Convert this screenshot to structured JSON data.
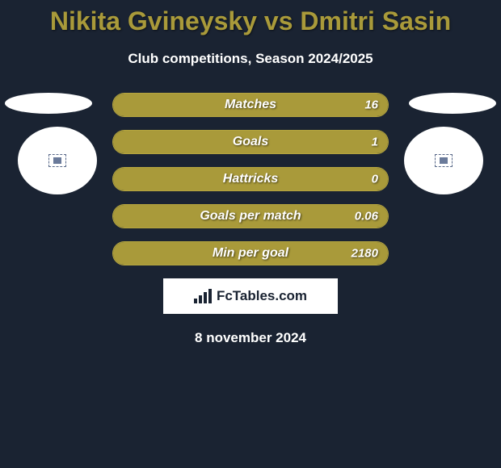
{
  "title": "Nikita Gvineysky vs Dmitri Sasin",
  "subtitle": "Club competitions, Season 2024/2025",
  "date": "8 november 2024",
  "brand": "FcTables.com",
  "colors": {
    "background": "#1a2332",
    "accent": "#a99a3a",
    "bar_border": "#b5a53f",
    "text": "#ffffff"
  },
  "stats": [
    {
      "label": "Matches",
      "value": "16",
      "fill_pct": 100
    },
    {
      "label": "Goals",
      "value": "1",
      "fill_pct": 100
    },
    {
      "label": "Hattricks",
      "value": "0",
      "fill_pct": 100
    },
    {
      "label": "Goals per match",
      "value": "0.06",
      "fill_pct": 100
    },
    {
      "label": "Min per goal",
      "value": "2180",
      "fill_pct": 100
    }
  ]
}
